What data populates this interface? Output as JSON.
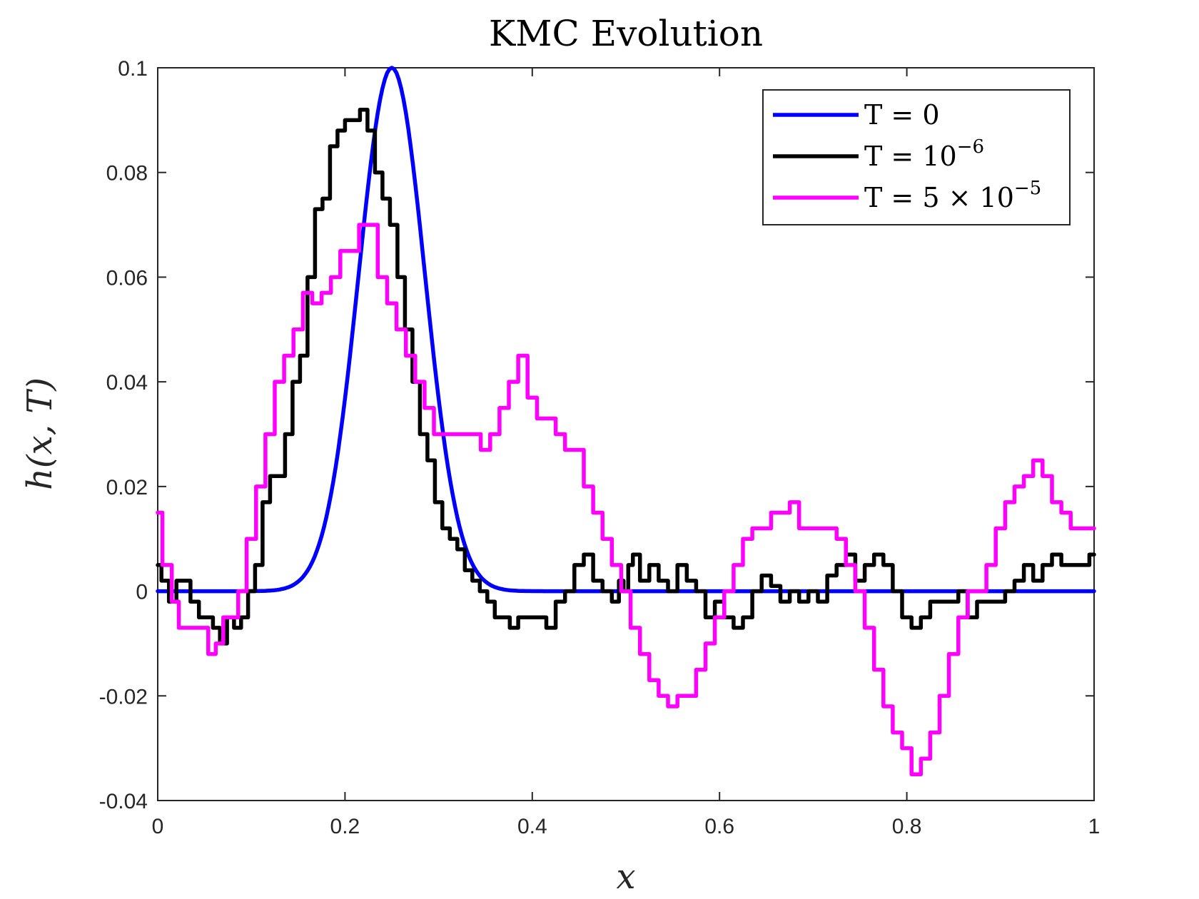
{
  "chart_data": {
    "type": "line",
    "title": "KMC Evolution",
    "xlabel": "x",
    "ylabel": "h(x, T)",
    "xlim": [
      0,
      1
    ],
    "ylim": [
      -0.04,
      0.1
    ],
    "xticks": [
      "0",
      "0.2",
      "0.4",
      "0.6",
      "0.8",
      "1"
    ],
    "xtick_values": [
      0,
      0.2,
      0.4,
      0.6,
      0.8,
      1
    ],
    "yticks": [
      "-0.04",
      "-0.02",
      "0",
      "0.02",
      "0.04",
      "0.06",
      "0.08",
      "0.1"
    ],
    "ytick_values": [
      -0.04,
      -0.02,
      0,
      0.02,
      0.04,
      0.06,
      0.08,
      0.1
    ],
    "grid": false,
    "legend_position": "top-right",
    "series": [
      {
        "name": "T = 0",
        "legend_main": "T = 0",
        "legend_sup": "",
        "color": "#0000ff",
        "gaussian": {
          "amplitude": 0.1,
          "center": 0.25,
          "width": 0.05
        },
        "x": [],
        "y": []
      },
      {
        "name": "T = 10^-6",
        "legend_main": "T = 10",
        "legend_sup": "−6",
        "color": "#000000",
        "x": [
          0,
          0.008,
          0.016,
          0.024,
          0.03,
          0.04,
          0.048,
          0.055,
          0.063,
          0.07,
          0.078,
          0.085,
          0.093,
          0.1,
          0.108,
          0.116,
          0.124,
          0.132,
          0.14,
          0.148,
          0.156,
          0.164,
          0.172,
          0.18,
          0.188,
          0.196,
          0.204,
          0.212,
          0.22,
          0.228,
          0.236,
          0.244,
          0.252,
          0.26,
          0.268,
          0.276,
          0.284,
          0.292,
          0.3,
          0.308,
          0.316,
          0.324,
          0.332,
          0.34,
          0.348,
          0.356,
          0.364,
          0.372,
          0.38,
          0.39,
          0.4,
          0.41,
          0.42,
          0.43,
          0.44,
          0.45,
          0.46,
          0.47,
          0.48,
          0.49,
          0.495,
          0.5,
          0.505,
          0.51,
          0.52,
          0.53,
          0.54,
          0.55,
          0.56,
          0.57,
          0.58,
          0.59,
          0.6,
          0.61,
          0.62,
          0.63,
          0.64,
          0.65,
          0.66,
          0.67,
          0.68,
          0.69,
          0.7,
          0.71,
          0.72,
          0.73,
          0.74,
          0.75,
          0.76,
          0.77,
          0.78,
          0.79,
          0.8,
          0.81,
          0.82,
          0.83,
          0.84,
          0.85,
          0.86,
          0.87,
          0.88,
          0.89,
          0.9,
          0.91,
          0.92,
          0.93,
          0.94,
          0.95,
          0.96,
          0.97,
          0.98,
          0.99,
          1
        ],
        "y": [
          0.005,
          0.002,
          -0.002,
          0.002,
          0.002,
          -0.002,
          -0.005,
          -0.005,
          -0.007,
          -0.01,
          -0.005,
          -0.007,
          -0.005,
          0,
          0.005,
          0.017,
          0.022,
          0.022,
          0.03,
          0.04,
          0.045,
          0.06,
          0.073,
          0.075,
          0.085,
          0.088,
          0.09,
          0.09,
          0.092,
          0.088,
          0.08,
          0.075,
          0.07,
          0.06,
          0.05,
          0.04,
          0.03,
          0.025,
          0.017,
          0.012,
          0.01,
          0.008,
          0.004,
          0.002,
          0,
          -0.002,
          -0.005,
          -0.005,
          -0.007,
          -0.005,
          -0.005,
          -0.005,
          -0.007,
          -0.002,
          0,
          0.005,
          0.007,
          0.002,
          0,
          -0.002,
          0.002,
          0,
          0.005,
          0.007,
          0.002,
          0.005,
          0.002,
          0,
          0.005,
          0.002,
          0,
          -0.005,
          -0.002,
          -0.005,
          -0.007,
          -0.005,
          0,
          0.003,
          0.001,
          -0.002,
          0,
          -0.002,
          0,
          -0.002,
          0.003,
          0.005,
          0.007,
          0.002,
          0.005,
          0.007,
          0.005,
          0,
          -0.005,
          -0.007,
          -0.005,
          -0.002,
          -0.002,
          -0.002,
          0,
          -0.005,
          -0.002,
          -0.002,
          -0.002,
          0,
          0.002,
          0.005,
          0.002,
          0.005,
          0.007,
          0.005,
          0.005,
          0.005,
          0.007
        ],
        "shape": "staircase"
      },
      {
        "name": "T = 5 × 10^-5",
        "legend_main": "T = 5 × 10",
        "legend_sup": "−5",
        "color": "#ff00ff",
        "x": [
          0,
          0.01,
          0.02,
          0.025,
          0.03,
          0.04,
          0.05,
          0.058,
          0.066,
          0.074,
          0.082,
          0.09,
          0.1,
          0.11,
          0.12,
          0.13,
          0.14,
          0.15,
          0.16,
          0.17,
          0.18,
          0.19,
          0.2,
          0.21,
          0.22,
          0.23,
          0.24,
          0.25,
          0.26,
          0.27,
          0.28,
          0.29,
          0.3,
          0.31,
          0.32,
          0.33,
          0.34,
          0.35,
          0.36,
          0.37,
          0.38,
          0.39,
          0.4,
          0.41,
          0.42,
          0.43,
          0.44,
          0.45,
          0.46,
          0.47,
          0.48,
          0.49,
          0.5,
          0.51,
          0.52,
          0.53,
          0.54,
          0.55,
          0.56,
          0.57,
          0.58,
          0.59,
          0.6,
          0.61,
          0.62,
          0.63,
          0.64,
          0.65,
          0.66,
          0.67,
          0.68,
          0.69,
          0.7,
          0.71,
          0.72,
          0.73,
          0.74,
          0.75,
          0.76,
          0.77,
          0.78,
          0.79,
          0.8,
          0.81,
          0.82,
          0.83,
          0.84,
          0.85,
          0.86,
          0.87,
          0.88,
          0.89,
          0.9,
          0.91,
          0.92,
          0.93,
          0.94,
          0.95,
          0.96,
          0.97,
          0.98,
          0.99,
          1
        ],
        "y": [
          0.015,
          0.005,
          -0.002,
          -0.007,
          -0.007,
          -0.007,
          -0.007,
          -0.012,
          -0.01,
          -0.005,
          -0.005,
          0,
          0.01,
          0.02,
          0.03,
          0.04,
          0.045,
          0.05,
          0.057,
          0.055,
          0.057,
          0.06,
          0.065,
          0.065,
          0.07,
          0.07,
          0.06,
          0.055,
          0.05,
          0.045,
          0.04,
          0.035,
          0.03,
          0.03,
          0.03,
          0.03,
          0.03,
          0.027,
          0.03,
          0.035,
          0.04,
          0.045,
          0.037,
          0.033,
          0.033,
          0.03,
          0.027,
          0.027,
          0.02,
          0.015,
          0.01,
          0.005,
          0,
          -0.007,
          -0.012,
          -0.017,
          -0.02,
          -0.022,
          -0.02,
          -0.02,
          -0.015,
          -0.01,
          -0.005,
          0,
          0.005,
          0.01,
          0.012,
          0.012,
          0.015,
          0.015,
          0.017,
          0.012,
          0.012,
          0.012,
          0.012,
          0.01,
          0.005,
          0,
          -0.007,
          -0.015,
          -0.022,
          -0.027,
          -0.03,
          -0.035,
          -0.032,
          -0.027,
          -0.02,
          -0.012,
          -0.005,
          0,
          0,
          0.005,
          0.012,
          0.017,
          0.02,
          0.022,
          0.025,
          0.022,
          0.017,
          0.015,
          0.012,
          0.012,
          0.012
        ],
        "shape": "staircase"
      }
    ]
  }
}
